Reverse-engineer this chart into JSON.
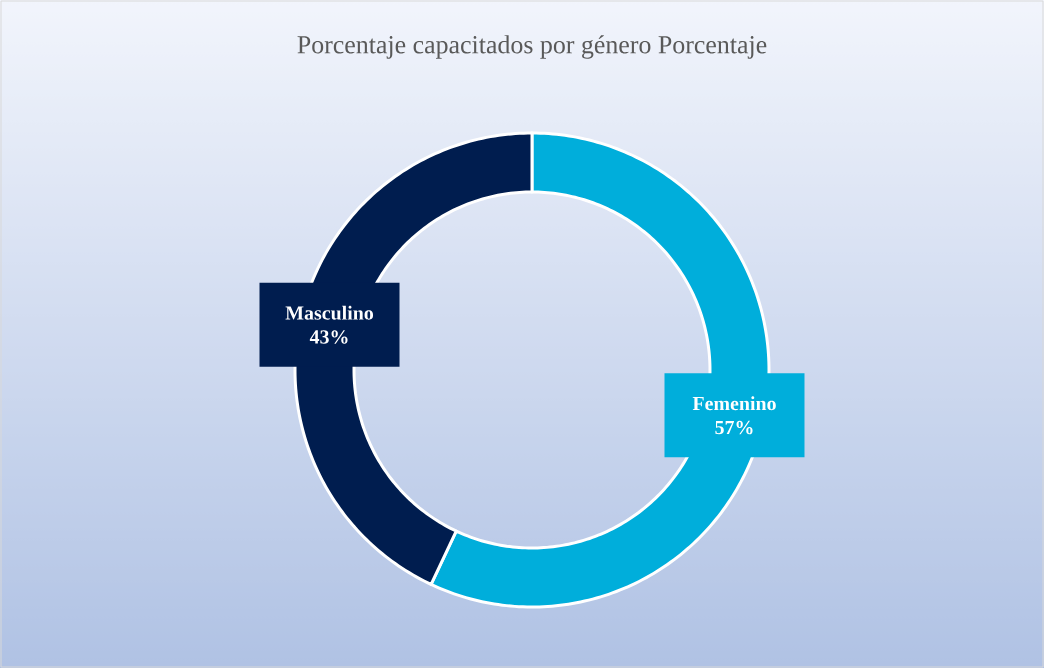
{
  "chart_data": {
    "type": "donut",
    "title": "Porcentaje capacitados por género Porcentaje",
    "categories": [
      "Femenino",
      "Masculino"
    ],
    "values": [
      57,
      43
    ],
    "colors": [
      "#00aedb",
      "#001d4f"
    ],
    "value_labels": [
      "57%",
      "43%"
    ]
  }
}
